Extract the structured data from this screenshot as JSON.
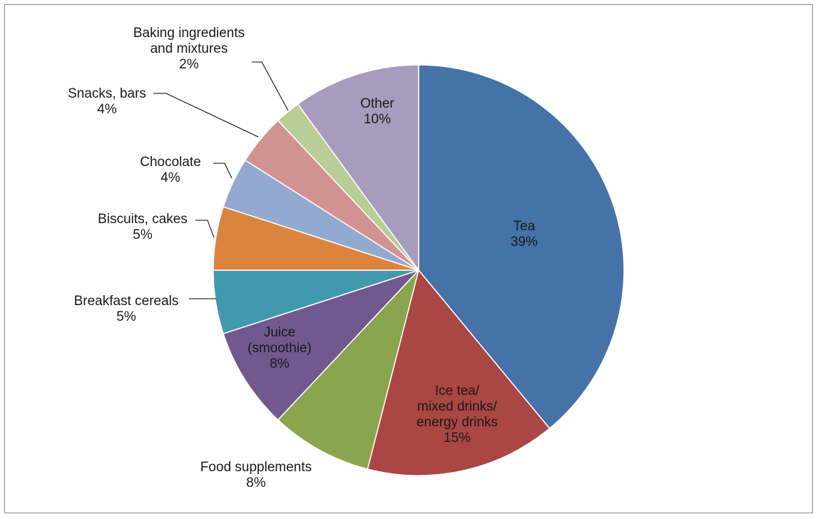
{
  "chart_data": {
    "type": "pie",
    "title": "",
    "start": "12 o'clock",
    "direction": "clockwise",
    "legend": "none",
    "slices": [
      {
        "label": "Tea",
        "label_lines": [
          "Tea",
          "39%"
        ],
        "value": 39,
        "color": "#4572A7",
        "label_mode": "inside"
      },
      {
        "label": "Ice tea/ mixed drinks/ energy drinks",
        "label_lines": [
          "Ice tea/",
          "mixed drinks/",
          "energy drinks",
          "15%"
        ],
        "value": 15,
        "color": "#AA4643",
        "label_mode": "inside"
      },
      {
        "label": "Food supplements",
        "label_lines": [
          "Food supplements",
          "8%"
        ],
        "value": 8,
        "color": "#89A54E",
        "label_mode": "outside"
      },
      {
        "label": "Juice (smoothie)",
        "label_lines": [
          "Juice",
          "(smoothie)",
          "8%"
        ],
        "value": 8,
        "color": "#71588F",
        "label_mode": "inside"
      },
      {
        "label": "Breakfast cereals",
        "label_lines": [
          "Breakfast cereals",
          "5%"
        ],
        "value": 5,
        "color": "#4198AF",
        "label_mode": "leader"
      },
      {
        "label": "Biscuits, cakes",
        "label_lines": [
          "Biscuits, cakes",
          "5%"
        ],
        "value": 5,
        "color": "#DB843D",
        "label_mode": "leader"
      },
      {
        "label": "Chocolate",
        "label_lines": [
          "Chocolate",
          "4%"
        ],
        "value": 4,
        "color": "#93A9CF",
        "label_mode": "leader"
      },
      {
        "label": "Snacks, bars",
        "label_lines": [
          "Snacks,  bars",
          "4%"
        ],
        "value": 4,
        "color": "#D19392",
        "label_mode": "leader"
      },
      {
        "label": "Baking ingredients and mixtures",
        "label_lines": [
          "Baking ingredients",
          "and mixtures",
          "2%"
        ],
        "value": 2,
        "color": "#B9CD96",
        "label_mode": "leader"
      },
      {
        "label": "Other",
        "label_lines": [
          "Other",
          "10%"
        ],
        "value": 10,
        "color": "#A99BBD",
        "label_mode": "inside"
      }
    ]
  }
}
